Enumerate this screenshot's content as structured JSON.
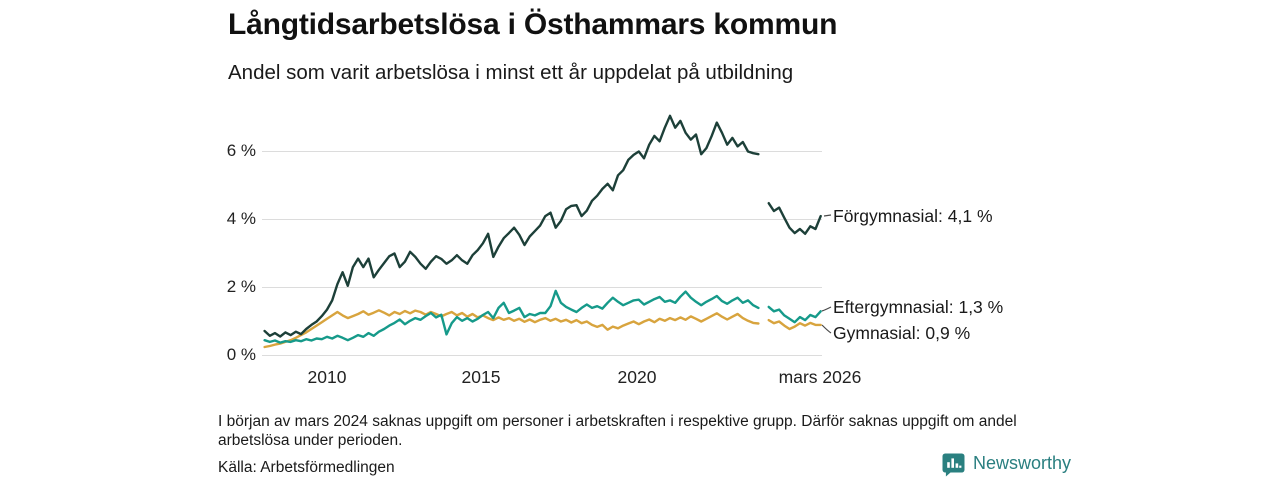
{
  "header": {
    "title": "Långtidsarbetslösa i Östhammars kommun",
    "subtitle": "Andel som varit arbetslösa i minst ett år uppdelat på utbildning"
  },
  "footer": {
    "note": "I början av mars 2024 saknas uppgift om personer i arbetskraften i respektive grupp. Därför saknas uppgift om andel arbetslösa under perioden.",
    "source": "Källa: Arbetsförmedlingen",
    "brand": "Newsworthy",
    "brand_color": "#2a7f80"
  },
  "chart_data": {
    "type": "line",
    "title": "Långtidsarbetslösa i Östhammars kommun",
    "subtitle": "Andel som varit arbetslösa i minst ett år uppdelat på utbildning",
    "unit": "%",
    "grid": "horizontal",
    "grid_color": "#dcdcdc",
    "legend_position": "right",
    "x_range": [
      2008,
      2026.2
    ],
    "y_range": [
      0,
      7.2
    ],
    "gap_period": "mars 2024",
    "y_axis": {
      "values": [
        0,
        2,
        4,
        6
      ],
      "labels": [
        "0 %",
        "2 %",
        "4 %",
        "6 %"
      ]
    },
    "x_axis": {
      "labels": [
        "2010",
        "2015",
        "2020",
        "mars 2026"
      ],
      "positions": [
        2010,
        2015,
        2020,
        2025.9
      ]
    },
    "series": [
      {
        "name": "Gymnasial",
        "label": "Gymnasial: 0,9 %",
        "last_value": 0.9,
        "color": "#d8a43e",
        "segments": [
          {
            "start": 2008.083,
            "step": 0.1667,
            "values": [
              0.25,
              0.28,
              0.32,
              0.35,
              0.4,
              0.45,
              0.52,
              0.6,
              0.68,
              0.78,
              0.88,
              0.98,
              1.08,
              1.18,
              1.28,
              1.18,
              1.1,
              1.16,
              1.22,
              1.3,
              1.2,
              1.26,
              1.33,
              1.26,
              1.18,
              1.28,
              1.22,
              1.31,
              1.24,
              1.32,
              1.28,
              1.2,
              1.28,
              1.22,
              1.15,
              1.22,
              1.28,
              1.18,
              1.25,
              1.14,
              1.22,
              1.12,
              1.18,
              1.1,
              1.04,
              1.12,
              1.05,
              1.1,
              1.02,
              1.08,
              0.99,
              1.06,
              0.98,
              1.05,
              1.1,
              1.02,
              1.08,
              1.0,
              1.05,
              0.97,
              1.04,
              0.95,
              1.0,
              0.9,
              0.84,
              0.9,
              0.76,
              0.85,
              0.8,
              0.88,
              0.94,
              1.0,
              0.92,
              1.0,
              1.06,
              0.98,
              1.08,
              1.02,
              1.1,
              1.04,
              1.12,
              1.05,
              1.15,
              1.08,
              1.0,
              1.08,
              1.16,
              1.24,
              1.14,
              1.06,
              1.14,
              1.22,
              1.1,
              1.02,
              0.96,
              0.94
            ]
          },
          {
            "start": 2024.25,
            "step": 0.1667,
            "values": [
              1.04,
              0.95,
              1.0,
              0.88,
              0.78,
              0.85,
              0.95,
              0.88,
              0.96,
              0.9,
              0.9
            ]
          }
        ]
      },
      {
        "name": "Eftergymnasial",
        "label": "Eftergymnasial: 1,3 %",
        "last_value": 1.3,
        "color": "#169a8a",
        "segments": [
          {
            "start": 2008.083,
            "step": 0.1667,
            "values": [
              0.45,
              0.4,
              0.44,
              0.38,
              0.42,
              0.4,
              0.45,
              0.42,
              0.48,
              0.44,
              0.5,
              0.48,
              0.55,
              0.5,
              0.58,
              0.52,
              0.45,
              0.52,
              0.6,
              0.55,
              0.66,
              0.58,
              0.7,
              0.78,
              0.88,
              0.96,
              1.06,
              0.92,
              1.02,
              1.1,
              1.05,
              1.16,
              1.25,
              1.12,
              1.2,
              0.62,
              0.95,
              1.13,
              1.02,
              1.1,
              1.0,
              1.08,
              1.19,
              1.28,
              1.1,
              1.4,
              1.55,
              1.25,
              1.32,
              1.4,
              1.13,
              1.22,
              1.18,
              1.25,
              1.25,
              1.45,
              1.9,
              1.55,
              1.43,
              1.35,
              1.28,
              1.4,
              1.5,
              1.4,
              1.45,
              1.38,
              1.55,
              1.7,
              1.58,
              1.48,
              1.55,
              1.62,
              1.64,
              1.5,
              1.58,
              1.66,
              1.72,
              1.58,
              1.62,
              1.55,
              1.73,
              1.88,
              1.7,
              1.58,
              1.48,
              1.58,
              1.66,
              1.75,
              1.6,
              1.52,
              1.62,
              1.7,
              1.55,
              1.62,
              1.48,
              1.4
            ]
          },
          {
            "start": 2024.25,
            "step": 0.1667,
            "values": [
              1.43,
              1.3,
              1.35,
              1.18,
              1.08,
              0.98,
              1.13,
              1.04,
              1.19,
              1.13,
              1.3
            ]
          }
        ]
      },
      {
        "name": "Förgymnasial",
        "label": "Förgymnasial: 4,1 %",
        "last_value": 4.1,
        "color": "#1d4039",
        "segments": [
          {
            "start": 2008.083,
            "step": 0.1667,
            "values": [
              0.72,
              0.58,
              0.66,
              0.56,
              0.68,
              0.6,
              0.7,
              0.63,
              0.78,
              0.9,
              1.0,
              1.16,
              1.35,
              1.62,
              2.1,
              2.45,
              2.05,
              2.6,
              2.85,
              2.6,
              2.85,
              2.3,
              2.52,
              2.72,
              2.92,
              3.0,
              2.6,
              2.76,
              3.05,
              2.9,
              2.7,
              2.55,
              2.76,
              2.92,
              2.84,
              2.7,
              2.8,
              2.95,
              2.8,
              2.7,
              2.95,
              3.1,
              3.3,
              3.58,
              2.9,
              3.2,
              3.45,
              3.6,
              3.76,
              3.55,
              3.25,
              3.5,
              3.66,
              3.82,
              4.1,
              4.2,
              3.76,
              3.96,
              4.3,
              4.4,
              4.42,
              4.1,
              4.26,
              4.55,
              4.7,
              4.9,
              5.05,
              4.86,
              5.3,
              5.45,
              5.76,
              5.9,
              6.0,
              5.8,
              6.2,
              6.46,
              6.3,
              6.7,
              7.05,
              6.7,
              6.9,
              6.55,
              6.35,
              6.5,
              5.92,
              6.1,
              6.45,
              6.85,
              6.55,
              6.2,
              6.4,
              6.15,
              6.28,
              6.0,
              5.95,
              5.92
            ]
          },
          {
            "start": 2024.25,
            "step": 0.1667,
            "values": [
              4.48,
              4.25,
              4.35,
              4.05,
              3.76,
              3.6,
              3.72,
              3.58,
              3.8,
              3.72,
              4.1
            ]
          }
        ]
      }
    ]
  }
}
